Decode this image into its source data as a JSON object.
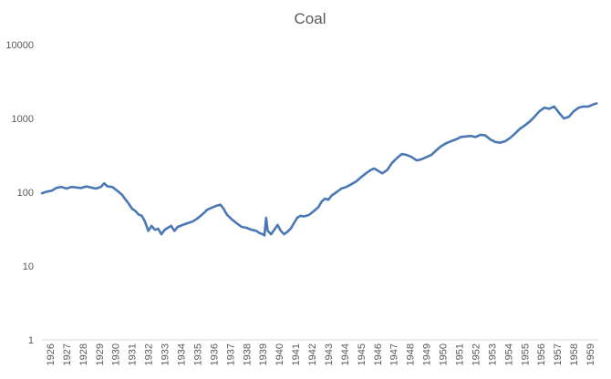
{
  "chart_data": {
    "type": "line",
    "title": "Coal",
    "y_scale": "log",
    "ylim": [
      1,
      10000
    ],
    "y_ticks": [
      "1",
      "10",
      "100",
      "1000",
      "10000"
    ],
    "xlim": [
      1926.0,
      1960.0
    ],
    "x_ticks": [
      "1926",
      "1927",
      "1928",
      "1929",
      "1930",
      "1931",
      "1932",
      "1933",
      "1934",
      "1935",
      "1936",
      "1937",
      "1938",
      "1939",
      "1940",
      "1941",
      "1942",
      "1943",
      "1944",
      "1945",
      "1946",
      "1947",
      "1948",
      "1949",
      "1950",
      "1951",
      "1952",
      "1953",
      "1954",
      "1955",
      "1956",
      "1957",
      "1958",
      "1959"
    ],
    "grid": false,
    "legend": "none",
    "color": "#4a78b4",
    "series": [
      {
        "x": [
          1926.0,
          1926.3,
          1926.6,
          1926.9,
          1927.2,
          1927.5,
          1927.8,
          1928.1,
          1928.4,
          1928.7,
          1929.0,
          1929.3,
          1929.6,
          1929.8,
          1930.0,
          1930.3,
          1930.6,
          1930.9,
          1931.1,
          1931.3,
          1931.5,
          1931.7,
          1931.9,
          1932.1,
          1932.3,
          1932.5,
          1932.7,
          1932.9,
          1933.1,
          1933.3,
          1933.5,
          1933.7,
          1933.9,
          1934.1,
          1934.3,
          1934.6,
          1934.9,
          1935.2,
          1935.5,
          1935.8,
          1936.1,
          1936.4,
          1936.7,
          1936.9,
          1937.1,
          1937.3,
          1937.6,
          1937.9,
          1938.2,
          1938.5,
          1938.8,
          1939.1,
          1939.3,
          1939.5,
          1939.6,
          1939.7,
          1939.8,
          1940.0,
          1940.2,
          1940.4,
          1940.6,
          1940.8,
          1941.0,
          1941.2,
          1941.4,
          1941.6,
          1941.8,
          1942.0,
          1942.3,
          1942.6,
          1942.9,
          1943.1,
          1943.3,
          1943.5,
          1943.7,
          1944.0,
          1944.3,
          1944.6,
          1944.9,
          1945.2,
          1945.5,
          1945.8,
          1946.1,
          1946.3,
          1946.5,
          1946.8,
          1947.1,
          1947.4,
          1947.7,
          1948.0,
          1948.3,
          1948.6,
          1948.9,
          1949.2,
          1949.5,
          1949.8,
          1950.1,
          1950.4,
          1950.7,
          1951.0,
          1951.3,
          1951.6,
          1951.9,
          1952.2,
          1952.5,
          1952.8,
          1953.1,
          1953.4,
          1953.7,
          1954.0,
          1954.3,
          1954.6,
          1954.9,
          1955.2,
          1955.5,
          1955.8,
          1956.1,
          1956.4,
          1956.7,
          1957.0,
          1957.3,
          1957.6,
          1957.9,
          1958.2,
          1958.5,
          1958.8,
          1959.1,
          1959.4,
          1959.7,
          1959.9
        ],
        "values": [
          97,
          102,
          105,
          115,
          118,
          112,
          118,
          116,
          114,
          120,
          116,
          112,
          118,
          132,
          120,
          118,
          105,
          92,
          80,
          70,
          60,
          56,
          50,
          48,
          40,
          30,
          35,
          31,
          32,
          27,
          31,
          33,
          35,
          30,
          34,
          36,
          38,
          40,
          44,
          50,
          58,
          62,
          66,
          68,
          60,
          50,
          43,
          38,
          34,
          33,
          31,
          30,
          28,
          27,
          26,
          45,
          30,
          27,
          31,
          36,
          30,
          27,
          29,
          32,
          38,
          45,
          48,
          47,
          49,
          55,
          63,
          75,
          82,
          79,
          90,
          100,
          112,
          118,
          128,
          140,
          160,
          180,
          200,
          210,
          198,
          180,
          200,
          250,
          290,
          330,
          320,
          300,
          270,
          280,
          300,
          320,
          370,
          420,
          460,
          490,
          520,
          560,
          570,
          580,
          560,
          600,
          590,
          520,
          480,
          470,
          490,
          540,
          620,
          720,
          800,
          900,
          1050,
          1250,
          1400,
          1350,
          1450,
          1200,
          1000,
          1050,
          1250,
          1400,
          1450,
          1450,
          1550,
          1600
        ]
      }
    ]
  }
}
